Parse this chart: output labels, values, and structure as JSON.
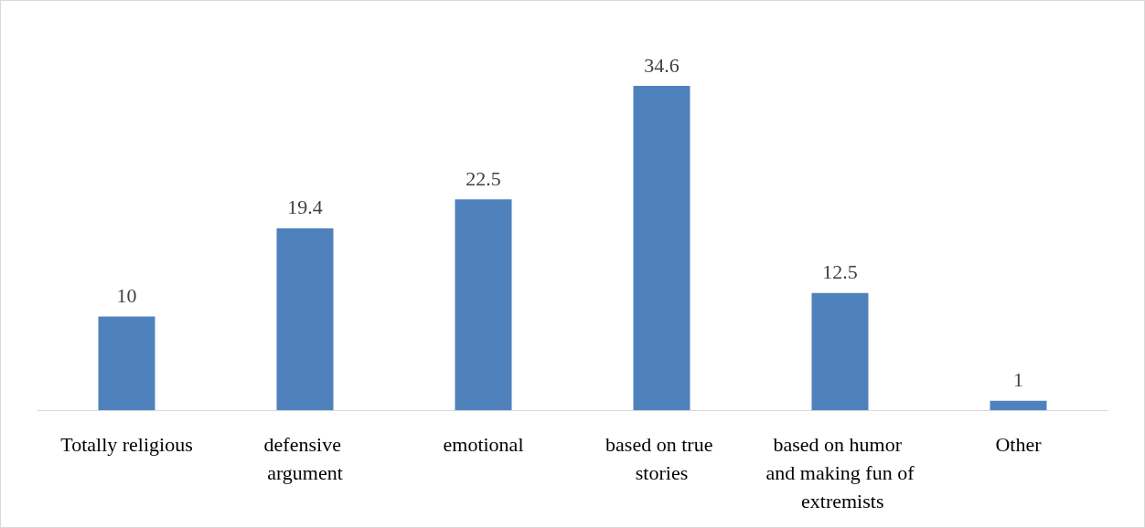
{
  "chart_data": {
    "type": "bar",
    "categories": [
      "Totally religious",
      "defensive argument",
      "emotional",
      "based on true stories",
      "based on humor and making fun of extremists",
      "Other"
    ],
    "values": [
      10,
      19.4,
      22.5,
      34.6,
      12.5,
      1
    ],
    "color": "#4f81bd",
    "data_labels": true
  }
}
